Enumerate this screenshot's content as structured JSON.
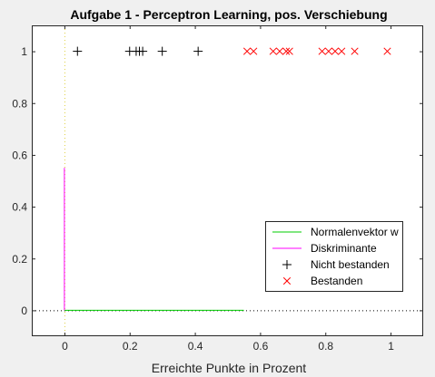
{
  "chart_data": {
    "type": "scatter",
    "title": "Aufgabe 1 - Perceptron Learning, pos. Verschiebung",
    "xlabel": "Erreichte Punkte in Prozent",
    "ylabel": "",
    "xlim": [
      -0.1,
      1.1
    ],
    "ylim": [
      -0.1,
      1.1
    ],
    "x_ticks": [
      0,
      0.2,
      0.4,
      0.6,
      0.8,
      1
    ],
    "x_tick_labels": [
      "0",
      "0.2",
      "0.4",
      "0.6",
      "0.8",
      "1"
    ],
    "y_ticks": [
      0,
      0.2,
      0.4,
      0.6,
      0.8,
      1
    ],
    "y_tick_labels": [
      "0",
      "0.2",
      "0.4",
      "0.6",
      "0.8",
      "1"
    ],
    "grid": false,
    "legend_position": "lower-right",
    "series": [
      {
        "name": "Normalenvektor w",
        "kind": "line",
        "color": "#00cc00",
        "points": [
          [
            0,
            0
          ],
          [
            0.55,
            0
          ]
        ]
      },
      {
        "name": "Diskriminante",
        "kind": "line",
        "color": "#ff00ff",
        "points": [
          [
            0,
            0
          ],
          [
            0,
            0.55
          ]
        ]
      },
      {
        "name": "Nicht bestanden",
        "kind": "marker",
        "marker": "plus",
        "color": "#000000",
        "x": [
          0.04,
          0.2,
          0.22,
          0.23,
          0.24,
          0.3,
          0.41
        ],
        "y": [
          1,
          1,
          1,
          1,
          1,
          1,
          1
        ]
      },
      {
        "name": "Bestanden",
        "kind": "marker",
        "marker": "x",
        "color": "#ff0000",
        "x": [
          0.56,
          0.58,
          0.64,
          0.66,
          0.68,
          0.69,
          0.79,
          0.81,
          0.83,
          0.85,
          0.89,
          0.99
        ],
        "y": [
          1,
          1,
          1,
          1,
          1,
          1,
          1,
          1,
          1,
          1,
          1,
          1
        ]
      }
    ],
    "reference_lines": [
      {
        "orientation": "horizontal",
        "value": 0,
        "color": "#000000",
        "style": "dotted"
      },
      {
        "orientation": "vertical",
        "value": 0,
        "color": "#e0d040",
        "style": "dotted"
      }
    ]
  }
}
